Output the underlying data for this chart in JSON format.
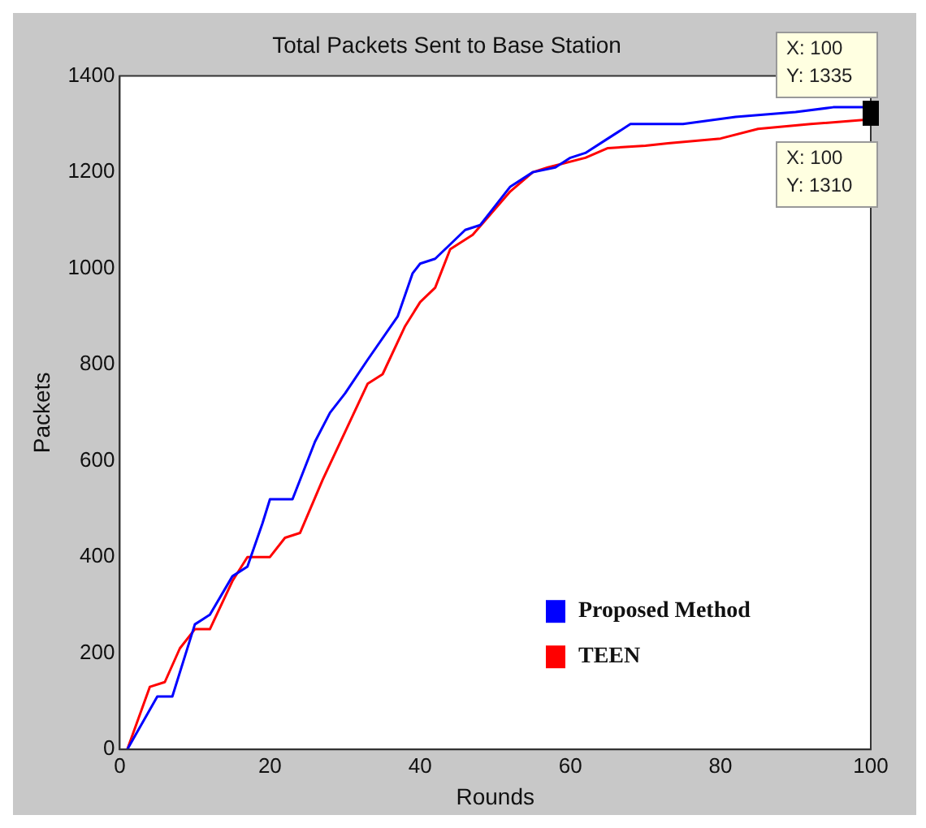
{
  "chart_data": {
    "type": "step",
    "title": "Total Packets Sent to Base Station",
    "xlabel": "Rounds",
    "ylabel": "Packets",
    "xlim": [
      0,
      100
    ],
    "xticks": [
      0,
      20,
      40,
      60,
      80,
      100
    ],
    "ylim": [
      0,
      1400
    ],
    "yticks": [
      0,
      200,
      400,
      600,
      800,
      1000,
      1200,
      1400
    ],
    "grid": false,
    "legend": "bottom right",
    "series": [
      {
        "name": "Proposed Method",
        "color": "#0000ff",
        "x": [
          1,
          5,
          7,
          10,
          12,
          15,
          17,
          19,
          20,
          23,
          26,
          28,
          30,
          33,
          37,
          39,
          40,
          42,
          46,
          48,
          52,
          55,
          58,
          60,
          62,
          65,
          68,
          75,
          82,
          90,
          95,
          100
        ],
        "values": [
          0,
          110,
          110,
          260,
          280,
          360,
          380,
          470,
          520,
          520,
          640,
          700,
          740,
          810,
          900,
          990,
          1010,
          1020,
          1080,
          1090,
          1170,
          1200,
          1210,
          1230,
          1240,
          1270,
          1300,
          1300,
          1315,
          1325,
          1335,
          1335
        ]
      },
      {
        "name": "TEEN",
        "color": "#ff0000",
        "x": [
          1,
          4,
          6,
          8,
          10,
          12,
          15,
          17,
          20,
          22,
          24,
          27,
          30,
          33,
          35,
          38,
          40,
          42,
          44,
          47,
          52,
          55,
          57,
          62,
          65,
          70,
          73,
          80,
          85,
          92,
          100
        ],
        "values": [
          0,
          130,
          140,
          210,
          250,
          250,
          350,
          400,
          400,
          440,
          450,
          560,
          660,
          760,
          780,
          880,
          930,
          960,
          1040,
          1070,
          1160,
          1200,
          1210,
          1230,
          1250,
          1255,
          1260,
          1270,
          1290,
          1300,
          1310
        ]
      }
    ],
    "annotations": [
      {
        "text": "X: 100\nY: 1335",
        "x": 100,
        "y": 1335
      },
      {
        "text": "X: 100\nY: 1310",
        "x": 100,
        "y": 1310
      }
    ]
  }
}
